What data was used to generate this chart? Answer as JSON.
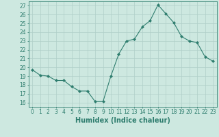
{
  "x": [
    0,
    1,
    2,
    3,
    4,
    5,
    6,
    7,
    8,
    9,
    10,
    11,
    12,
    13,
    14,
    15,
    16,
    17,
    18,
    19,
    20,
    21,
    22,
    23
  ],
  "y": [
    19.7,
    19.1,
    19.0,
    18.5,
    18.5,
    17.8,
    17.3,
    17.3,
    16.1,
    16.1,
    19.0,
    21.5,
    23.0,
    23.2,
    24.6,
    25.3,
    27.1,
    26.1,
    25.1,
    23.5,
    23.0,
    22.8,
    21.2,
    20.7
  ],
  "line_color": "#2e7d6e",
  "marker": "D",
  "marker_size": 2.0,
  "bg_color": "#cde8e0",
  "grid_color": "#b0cfc8",
  "xlabel": "Humidex (Indice chaleur)",
  "ylim": [
    15.5,
    27.5
  ],
  "xlim": [
    -0.5,
    23.5
  ],
  "yticks": [
    16,
    17,
    18,
    19,
    20,
    21,
    22,
    23,
    24,
    25,
    26,
    27
  ],
  "xticks": [
    0,
    1,
    2,
    3,
    4,
    5,
    6,
    7,
    8,
    9,
    10,
    11,
    12,
    13,
    14,
    15,
    16,
    17,
    18,
    19,
    20,
    21,
    22,
    23
  ],
  "tick_label_fontsize": 5.5,
  "xlabel_fontsize": 7.0,
  "tick_color": "#2e7d6e",
  "line_width": 0.8
}
